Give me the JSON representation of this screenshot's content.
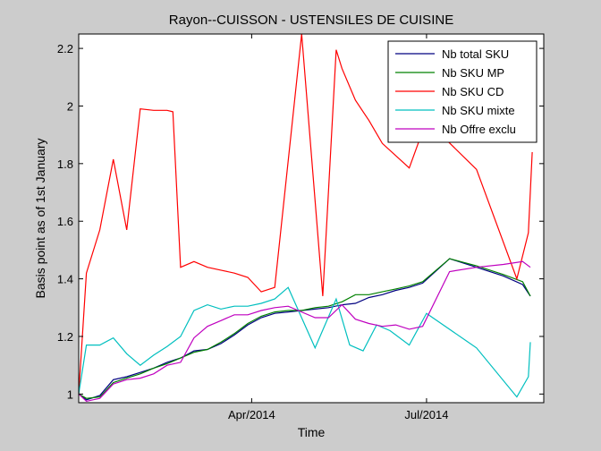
{
  "chart_data": {
    "type": "line",
    "title": "Rayon--CUISSON - USTENSILES DE CUISINE",
    "xlabel": "Time",
    "ylabel": "Basis point as of 1st January",
    "x_start": "2014-01-01",
    "xlim": [
      "2014-01-01",
      "2014-08-31"
    ],
    "ylim": [
      0.97,
      2.25
    ],
    "yticks": [
      1,
      1.2,
      1.4,
      1.6,
      1.8,
      2,
      2.2
    ],
    "xticks": [
      {
        "date": "2014-04-01",
        "label": "Apr/2014"
      },
      {
        "date": "2014-07-01",
        "label": "Jul/2014"
      }
    ],
    "grid": false,
    "legend_position": "top-right",
    "series": [
      {
        "name": "Nb total SKU",
        "color": "#000080",
        "points": [
          [
            "2014-01-01",
            1.0
          ],
          [
            "2014-01-05",
            0.98
          ],
          [
            "2014-01-12",
            0.995
          ],
          [
            "2014-01-19",
            1.05
          ],
          [
            "2014-01-26",
            1.06
          ],
          [
            "2014-02-02",
            1.075
          ],
          [
            "2014-02-09",
            1.09
          ],
          [
            "2014-02-16",
            1.11
          ],
          [
            "2014-02-23",
            1.125
          ],
          [
            "2014-03-02",
            1.15
          ],
          [
            "2014-03-09",
            1.155
          ],
          [
            "2014-03-16",
            1.175
          ],
          [
            "2014-03-23",
            1.205
          ],
          [
            "2014-03-30",
            1.24
          ],
          [
            "2014-04-06",
            1.265
          ],
          [
            "2014-04-13",
            1.28
          ],
          [
            "2014-04-20",
            1.285
          ],
          [
            "2014-04-27",
            1.29
          ],
          [
            "2014-05-04",
            1.295
          ],
          [
            "2014-05-11",
            1.3
          ],
          [
            "2014-05-18",
            1.31
          ],
          [
            "2014-05-25",
            1.315
          ],
          [
            "2014-06-01",
            1.335
          ],
          [
            "2014-06-08",
            1.345
          ],
          [
            "2014-06-15",
            1.36
          ],
          [
            "2014-06-22",
            1.37
          ],
          [
            "2014-06-29",
            1.385
          ],
          [
            "2014-07-13",
            1.47
          ],
          [
            "2014-07-27",
            1.44
          ],
          [
            "2014-08-10",
            1.41
          ],
          [
            "2014-08-20",
            1.38
          ],
          [
            "2014-08-24",
            1.34
          ]
        ]
      },
      {
        "name": "Nb SKU MP",
        "color": "#008000",
        "points": [
          [
            "2014-01-01",
            1.0
          ],
          [
            "2014-01-05",
            0.985
          ],
          [
            "2014-01-12",
            0.99
          ],
          [
            "2014-01-19",
            1.04
          ],
          [
            "2014-01-26",
            1.055
          ],
          [
            "2014-02-02",
            1.07
          ],
          [
            "2014-02-09",
            1.09
          ],
          [
            "2014-02-16",
            1.105
          ],
          [
            "2014-02-23",
            1.125
          ],
          [
            "2014-03-02",
            1.145
          ],
          [
            "2014-03-09",
            1.155
          ],
          [
            "2014-03-16",
            1.18
          ],
          [
            "2014-03-23",
            1.21
          ],
          [
            "2014-03-30",
            1.245
          ],
          [
            "2014-04-06",
            1.27
          ],
          [
            "2014-04-13",
            1.285
          ],
          [
            "2014-04-20",
            1.29
          ],
          [
            "2014-04-27",
            1.29
          ],
          [
            "2014-05-04",
            1.3
          ],
          [
            "2014-05-11",
            1.305
          ],
          [
            "2014-05-18",
            1.32
          ],
          [
            "2014-05-25",
            1.345
          ],
          [
            "2014-06-01",
            1.345
          ],
          [
            "2014-06-08",
            1.355
          ],
          [
            "2014-06-15",
            1.365
          ],
          [
            "2014-06-22",
            1.375
          ],
          [
            "2014-06-29",
            1.39
          ],
          [
            "2014-07-13",
            1.47
          ],
          [
            "2014-07-27",
            1.445
          ],
          [
            "2014-08-10",
            1.415
          ],
          [
            "2014-08-20",
            1.39
          ],
          [
            "2014-08-24",
            1.34
          ]
        ]
      },
      {
        "name": "Nb SKU CD",
        "color": "#ff0000",
        "points": [
          [
            "2014-01-01",
            1.0
          ],
          [
            "2014-01-05",
            1.42
          ],
          [
            "2014-01-12",
            1.57
          ],
          [
            "2014-01-19",
            1.815
          ],
          [
            "2014-01-26",
            1.57
          ],
          [
            "2014-02-02",
            1.99
          ],
          [
            "2014-02-09",
            1.985
          ],
          [
            "2014-02-16",
            1.985
          ],
          [
            "2014-02-19",
            1.98
          ],
          [
            "2014-02-23",
            1.44
          ],
          [
            "2014-03-02",
            1.46
          ],
          [
            "2014-03-09",
            1.44
          ],
          [
            "2014-03-16",
            1.43
          ],
          [
            "2014-03-23",
            1.42
          ],
          [
            "2014-03-30",
            1.405
          ],
          [
            "2014-04-06",
            1.355
          ],
          [
            "2014-04-13",
            1.37
          ],
          [
            "2014-04-27",
            2.25
          ],
          [
            "2014-05-08",
            1.34
          ],
          [
            "2014-05-15",
            2.195
          ],
          [
            "2014-05-18",
            2.13
          ],
          [
            "2014-05-25",
            2.02
          ],
          [
            "2014-06-01",
            1.95
          ],
          [
            "2014-06-08",
            1.87
          ],
          [
            "2014-06-22",
            1.785
          ],
          [
            "2014-07-01",
            1.95
          ],
          [
            "2014-07-27",
            1.78
          ],
          [
            "2014-08-17",
            1.4
          ],
          [
            "2014-08-23",
            1.56
          ],
          [
            "2014-08-25",
            1.84
          ]
        ]
      },
      {
        "name": "Nb SKU mixte",
        "color": "#00bfbf",
        "points": [
          [
            "2014-01-01",
            1.0
          ],
          [
            "2014-01-05",
            1.17
          ],
          [
            "2014-01-12",
            1.17
          ],
          [
            "2014-01-19",
            1.195
          ],
          [
            "2014-01-26",
            1.14
          ],
          [
            "2014-02-02",
            1.1
          ],
          [
            "2014-02-09",
            1.135
          ],
          [
            "2014-02-16",
            1.165
          ],
          [
            "2014-02-23",
            1.2
          ],
          [
            "2014-03-02",
            1.29
          ],
          [
            "2014-03-09",
            1.31
          ],
          [
            "2014-03-16",
            1.295
          ],
          [
            "2014-03-23",
            1.305
          ],
          [
            "2014-03-30",
            1.305
          ],
          [
            "2014-04-06",
            1.315
          ],
          [
            "2014-04-13",
            1.33
          ],
          [
            "2014-04-20",
            1.37
          ],
          [
            "2014-05-04",
            1.16
          ],
          [
            "2014-05-15",
            1.33
          ],
          [
            "2014-05-22",
            1.17
          ],
          [
            "2014-05-29",
            1.15
          ],
          [
            "2014-06-05",
            1.24
          ],
          [
            "2014-06-12",
            1.22
          ],
          [
            "2014-06-22",
            1.17
          ],
          [
            "2014-07-01",
            1.28
          ],
          [
            "2014-07-27",
            1.16
          ],
          [
            "2014-08-17",
            0.99
          ],
          [
            "2014-08-23",
            1.06
          ],
          [
            "2014-08-24",
            1.18
          ]
        ]
      },
      {
        "name": "Nb Offre exclu",
        "color": "#bf00bf",
        "points": [
          [
            "2014-01-01",
            1.0
          ],
          [
            "2014-01-05",
            0.975
          ],
          [
            "2014-01-12",
            0.985
          ],
          [
            "2014-01-19",
            1.035
          ],
          [
            "2014-01-26",
            1.05
          ],
          [
            "2014-02-02",
            1.055
          ],
          [
            "2014-02-09",
            1.07
          ],
          [
            "2014-02-16",
            1.1
          ],
          [
            "2014-02-23",
            1.11
          ],
          [
            "2014-03-02",
            1.195
          ],
          [
            "2014-03-09",
            1.235
          ],
          [
            "2014-03-16",
            1.255
          ],
          [
            "2014-03-23",
            1.275
          ],
          [
            "2014-03-30",
            1.275
          ],
          [
            "2014-04-06",
            1.29
          ],
          [
            "2014-04-13",
            1.3
          ],
          [
            "2014-04-20",
            1.305
          ],
          [
            "2014-05-04",
            1.265
          ],
          [
            "2014-05-11",
            1.265
          ],
          [
            "2014-05-18",
            1.31
          ],
          [
            "2014-05-25",
            1.26
          ],
          [
            "2014-06-01",
            1.245
          ],
          [
            "2014-06-08",
            1.235
          ],
          [
            "2014-06-15",
            1.24
          ],
          [
            "2014-06-22",
            1.225
          ],
          [
            "2014-06-29",
            1.235
          ],
          [
            "2014-07-13",
            1.425
          ],
          [
            "2014-07-27",
            1.44
          ],
          [
            "2014-08-10",
            1.45
          ],
          [
            "2014-08-20",
            1.46
          ],
          [
            "2014-08-24",
            1.44
          ]
        ]
      }
    ]
  }
}
